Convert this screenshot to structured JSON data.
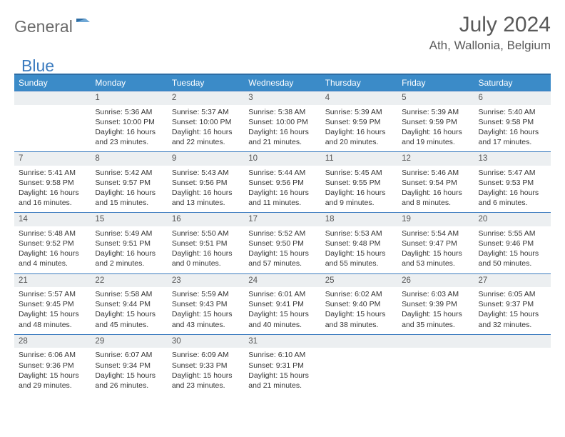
{
  "logo": {
    "part1": "General",
    "part2": "Blue"
  },
  "title": "July 2024",
  "location": "Ath, Wallonia, Belgium",
  "colors": {
    "header_bg": "#3b8bc8",
    "header_border": "#2e6da4",
    "daynum_bg": "#eceff1",
    "daynum_border": "#3b7bbf",
    "logo_gray": "#6b6b6b",
    "logo_blue": "#3b7bbf",
    "text": "#353535"
  },
  "weekdays": [
    "Sunday",
    "Monday",
    "Tuesday",
    "Wednesday",
    "Thursday",
    "Friday",
    "Saturday"
  ],
  "weeks": [
    {
      "nums": [
        "",
        "1",
        "2",
        "3",
        "4",
        "5",
        "6"
      ],
      "cells": [
        {
          "lines": []
        },
        {
          "lines": [
            "Sunrise: 5:36 AM",
            "Sunset: 10:00 PM",
            "Daylight: 16 hours and 23 minutes."
          ]
        },
        {
          "lines": [
            "Sunrise: 5:37 AM",
            "Sunset: 10:00 PM",
            "Daylight: 16 hours and 22 minutes."
          ]
        },
        {
          "lines": [
            "Sunrise: 5:38 AM",
            "Sunset: 10:00 PM",
            "Daylight: 16 hours and 21 minutes."
          ]
        },
        {
          "lines": [
            "Sunrise: 5:39 AM",
            "Sunset: 9:59 PM",
            "Daylight: 16 hours and 20 minutes."
          ]
        },
        {
          "lines": [
            "Sunrise: 5:39 AM",
            "Sunset: 9:59 PM",
            "Daylight: 16 hours and 19 minutes."
          ]
        },
        {
          "lines": [
            "Sunrise: 5:40 AM",
            "Sunset: 9:58 PM",
            "Daylight: 16 hours and 17 minutes."
          ]
        }
      ]
    },
    {
      "nums": [
        "7",
        "8",
        "9",
        "10",
        "11",
        "12",
        "13"
      ],
      "cells": [
        {
          "lines": [
            "Sunrise: 5:41 AM",
            "Sunset: 9:58 PM",
            "Daylight: 16 hours and 16 minutes."
          ]
        },
        {
          "lines": [
            "Sunrise: 5:42 AM",
            "Sunset: 9:57 PM",
            "Daylight: 16 hours and 15 minutes."
          ]
        },
        {
          "lines": [
            "Sunrise: 5:43 AM",
            "Sunset: 9:56 PM",
            "Daylight: 16 hours and 13 minutes."
          ]
        },
        {
          "lines": [
            "Sunrise: 5:44 AM",
            "Sunset: 9:56 PM",
            "Daylight: 16 hours and 11 minutes."
          ]
        },
        {
          "lines": [
            "Sunrise: 5:45 AM",
            "Sunset: 9:55 PM",
            "Daylight: 16 hours and 9 minutes."
          ]
        },
        {
          "lines": [
            "Sunrise: 5:46 AM",
            "Sunset: 9:54 PM",
            "Daylight: 16 hours and 8 minutes."
          ]
        },
        {
          "lines": [
            "Sunrise: 5:47 AM",
            "Sunset: 9:53 PM",
            "Daylight: 16 hours and 6 minutes."
          ]
        }
      ]
    },
    {
      "nums": [
        "14",
        "15",
        "16",
        "17",
        "18",
        "19",
        "20"
      ],
      "cells": [
        {
          "lines": [
            "Sunrise: 5:48 AM",
            "Sunset: 9:52 PM",
            "Daylight: 16 hours and 4 minutes."
          ]
        },
        {
          "lines": [
            "Sunrise: 5:49 AM",
            "Sunset: 9:51 PM",
            "Daylight: 16 hours and 2 minutes."
          ]
        },
        {
          "lines": [
            "Sunrise: 5:50 AM",
            "Sunset: 9:51 PM",
            "Daylight: 16 hours and 0 minutes."
          ]
        },
        {
          "lines": [
            "Sunrise: 5:52 AM",
            "Sunset: 9:50 PM",
            "Daylight: 15 hours and 57 minutes."
          ]
        },
        {
          "lines": [
            "Sunrise: 5:53 AM",
            "Sunset: 9:48 PM",
            "Daylight: 15 hours and 55 minutes."
          ]
        },
        {
          "lines": [
            "Sunrise: 5:54 AM",
            "Sunset: 9:47 PM",
            "Daylight: 15 hours and 53 minutes."
          ]
        },
        {
          "lines": [
            "Sunrise: 5:55 AM",
            "Sunset: 9:46 PM",
            "Daylight: 15 hours and 50 minutes."
          ]
        }
      ]
    },
    {
      "nums": [
        "21",
        "22",
        "23",
        "24",
        "25",
        "26",
        "27"
      ],
      "cells": [
        {
          "lines": [
            "Sunrise: 5:57 AM",
            "Sunset: 9:45 PM",
            "Daylight: 15 hours and 48 minutes."
          ]
        },
        {
          "lines": [
            "Sunrise: 5:58 AM",
            "Sunset: 9:44 PM",
            "Daylight: 15 hours and 45 minutes."
          ]
        },
        {
          "lines": [
            "Sunrise: 5:59 AM",
            "Sunset: 9:43 PM",
            "Daylight: 15 hours and 43 minutes."
          ]
        },
        {
          "lines": [
            "Sunrise: 6:01 AM",
            "Sunset: 9:41 PM",
            "Daylight: 15 hours and 40 minutes."
          ]
        },
        {
          "lines": [
            "Sunrise: 6:02 AM",
            "Sunset: 9:40 PM",
            "Daylight: 15 hours and 38 minutes."
          ]
        },
        {
          "lines": [
            "Sunrise: 6:03 AM",
            "Sunset: 9:39 PM",
            "Daylight: 15 hours and 35 minutes."
          ]
        },
        {
          "lines": [
            "Sunrise: 6:05 AM",
            "Sunset: 9:37 PM",
            "Daylight: 15 hours and 32 minutes."
          ]
        }
      ]
    },
    {
      "nums": [
        "28",
        "29",
        "30",
        "31",
        "",
        "",
        ""
      ],
      "cells": [
        {
          "lines": [
            "Sunrise: 6:06 AM",
            "Sunset: 9:36 PM",
            "Daylight: 15 hours and 29 minutes."
          ]
        },
        {
          "lines": [
            "Sunrise: 6:07 AM",
            "Sunset: 9:34 PM",
            "Daylight: 15 hours and 26 minutes."
          ]
        },
        {
          "lines": [
            "Sunrise: 6:09 AM",
            "Sunset: 9:33 PM",
            "Daylight: 15 hours and 23 minutes."
          ]
        },
        {
          "lines": [
            "Sunrise: 6:10 AM",
            "Sunset: 9:31 PM",
            "Daylight: 15 hours and 21 minutes."
          ]
        },
        {
          "lines": []
        },
        {
          "lines": []
        },
        {
          "lines": []
        }
      ]
    }
  ]
}
